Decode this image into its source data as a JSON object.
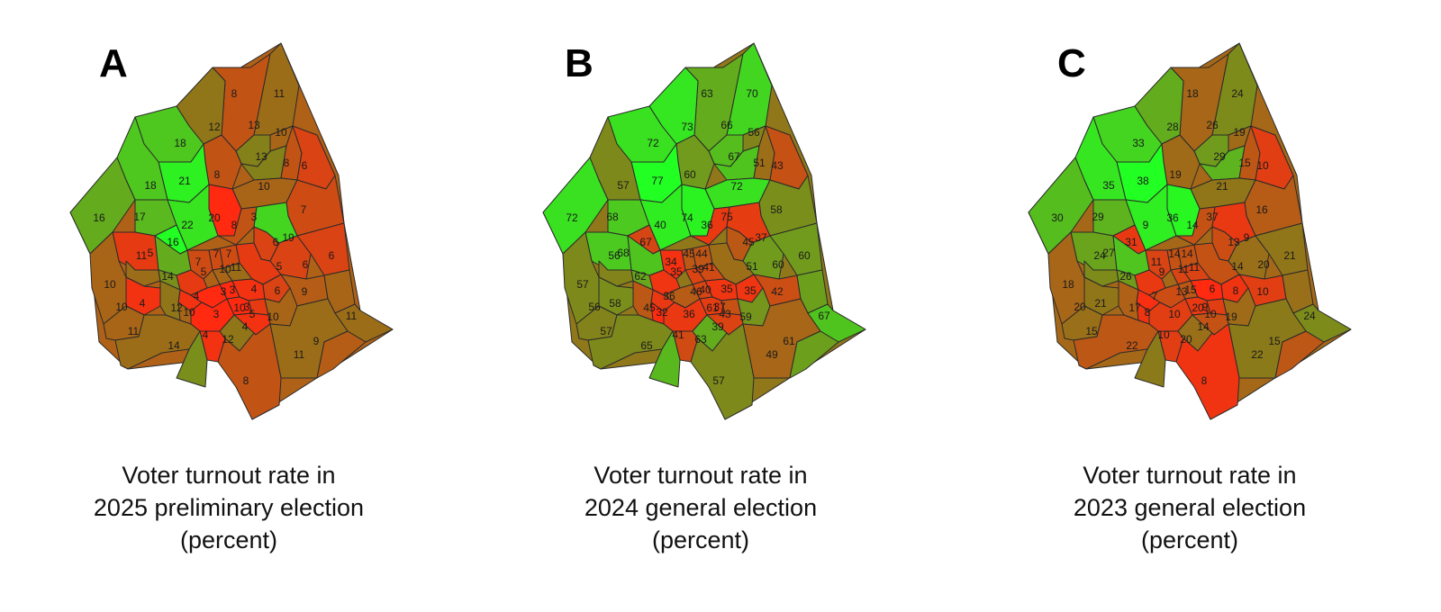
{
  "legend": {
    "low_color": "#ff2a10",
    "mid_color": "#8a7a1a",
    "high_color": "#22ff22"
  },
  "panels": [
    {
      "letter": "A",
      "caption": [
        "Voter turnout rate in",
        "2025 preliminary election",
        "(percent)"
      ],
      "labels": [
        {
          "t": "8",
          "v": 8
        },
        {
          "t": "11",
          "v": 11
        },
        {
          "t": "12",
          "v": 12
        },
        {
          "t": "13",
          "v": 13
        },
        {
          "t": "10",
          "v": 10
        },
        {
          "t": "18",
          "v": 18
        },
        {
          "t": "13",
          "v": 13
        },
        {
          "t": "8",
          "v": 8
        },
        {
          "t": "6",
          "v": 6
        },
        {
          "t": "8",
          "v": 8
        },
        {
          "t": "21",
          "v": 21
        },
        {
          "t": "10",
          "v": 10
        },
        {
          "t": "18",
          "v": 18
        },
        {
          "t": "7",
          "v": 7
        },
        {
          "t": "16",
          "v": 16
        },
        {
          "t": "17",
          "v": 17
        },
        {
          "t": "20",
          "v": 20
        },
        {
          "t": "3",
          "v": 3
        },
        {
          "t": "22",
          "v": 22
        },
        {
          "t": "8",
          "v": 8
        },
        {
          "t": "19",
          "v": 19
        },
        {
          "t": "6",
          "v": 6
        },
        {
          "t": "5",
          "v": 5
        },
        {
          "t": "16",
          "v": 16
        },
        {
          "t": "11",
          "v": 11
        },
        {
          "t": "7",
          "v": 7
        },
        {
          "t": "7",
          "v": 7
        },
        {
          "t": "7",
          "v": 7
        },
        {
          "t": "10",
          "v": 10
        },
        {
          "t": "11",
          "v": 11
        },
        {
          "t": "5",
          "v": 5
        },
        {
          "t": "6",
          "v": 6
        },
        {
          "t": "6",
          "v": 6
        },
        {
          "t": "14",
          "v": 14
        },
        {
          "t": "10",
          "v": 10
        },
        {
          "t": "5",
          "v": 5
        },
        {
          "t": "4",
          "v": 4
        },
        {
          "t": "3",
          "v": 3
        },
        {
          "t": "3",
          "v": 3
        },
        {
          "t": "4",
          "v": 4
        },
        {
          "t": "6",
          "v": 6
        },
        {
          "t": "9",
          "v": 9
        },
        {
          "t": "10",
          "v": 10
        },
        {
          "t": "4",
          "v": 4
        },
        {
          "t": "12",
          "v": 12
        },
        {
          "t": "10",
          "v": 10
        },
        {
          "t": "3",
          "v": 3
        },
        {
          "t": "3",
          "v": 3
        },
        {
          "t": "5",
          "v": 5
        },
        {
          "t": "10",
          "v": 10
        },
        {
          "t": "11",
          "v": 11
        },
        {
          "t": "10",
          "v": 10
        },
        {
          "t": "11",
          "v": 11
        },
        {
          "t": "4",
          "v": 4
        },
        {
          "t": "12",
          "v": 12
        },
        {
          "t": "4",
          "v": 4
        },
        {
          "t": "14",
          "v": 14
        },
        {
          "t": "11",
          "v": 11
        },
        {
          "t": "9",
          "v": 9
        },
        {
          "t": "8",
          "v": 8
        }
      ]
    },
    {
      "letter": "B",
      "caption": [
        "Voter turnout rate in",
        "2024 general election",
        "(percent)"
      ],
      "labels": [
        {
          "t": "63",
          "v": 63
        },
        {
          "t": "70",
          "v": 70
        },
        {
          "t": "73",
          "v": 73
        },
        {
          "t": "66",
          "v": 66
        },
        {
          "t": "56",
          "v": 56
        },
        {
          "t": "72",
          "v": 72
        },
        {
          "t": "67",
          "v": 67
        },
        {
          "t": "51",
          "v": 51
        },
        {
          "t": "43",
          "v": 43
        },
        {
          "t": "60",
          "v": 60
        },
        {
          "t": "77",
          "v": 77
        },
        {
          "t": "72",
          "v": 72
        },
        {
          "t": "57",
          "v": 57
        },
        {
          "t": "58",
          "v": 58
        },
        {
          "t": "72",
          "v": 72
        },
        {
          "t": "68",
          "v": 68
        },
        {
          "t": "74",
          "v": 74
        },
        {
          "t": "75",
          "v": 75
        },
        {
          "t": "40",
          "v": 40
        },
        {
          "t": "36",
          "v": 36
        },
        {
          "t": "37",
          "v": 37
        },
        {
          "t": "45",
          "v": 45
        },
        {
          "t": "68",
          "v": 68
        },
        {
          "t": "67",
          "v": 67
        },
        {
          "t": "56",
          "v": 56
        },
        {
          "t": "34",
          "v": 34
        },
        {
          "t": "45",
          "v": 45
        },
        {
          "t": "44",
          "v": 44
        },
        {
          "t": "39",
          "v": 39
        },
        {
          "t": "41",
          "v": 41
        },
        {
          "t": "51",
          "v": 51
        },
        {
          "t": "60",
          "v": 60
        },
        {
          "t": "60",
          "v": 60
        },
        {
          "t": "62",
          "v": 62
        },
        {
          "t": "57",
          "v": 57
        },
        {
          "t": "35",
          "v": 35
        },
        {
          "t": "36",
          "v": 36
        },
        {
          "t": "46",
          "v": 46
        },
        {
          "t": "40",
          "v": 40
        },
        {
          "t": "35",
          "v": 35
        },
        {
          "t": "35",
          "v": 35
        },
        {
          "t": "42",
          "v": 42
        },
        {
          "t": "61",
          "v": 61
        },
        {
          "t": "58",
          "v": 58
        },
        {
          "t": "45",
          "v": 45
        },
        {
          "t": "32",
          "v": 32
        },
        {
          "t": "36",
          "v": 36
        },
        {
          "t": "37",
          "v": 37
        },
        {
          "t": "43",
          "v": 43
        },
        {
          "t": "59",
          "v": 59
        },
        {
          "t": "67",
          "v": 67
        },
        {
          "t": "56",
          "v": 56
        },
        {
          "t": "57",
          "v": 57
        },
        {
          "t": "41",
          "v": 41
        },
        {
          "t": "63",
          "v": 63
        },
        {
          "t": "39",
          "v": 39
        },
        {
          "t": "65",
          "v": 65
        },
        {
          "t": "49",
          "v": 49
        },
        {
          "t": "61",
          "v": 61
        },
        {
          "t": "57",
          "v": 57
        }
      ]
    },
    {
      "letter": "C",
      "caption": [
        "Voter turnout rate in",
        "2023 general election",
        "(percent)"
      ],
      "labels": [
        {
          "t": "18",
          "v": 18
        },
        {
          "t": "24",
          "v": 24
        },
        {
          "t": "28",
          "v": 28
        },
        {
          "t": "26",
          "v": 26
        },
        {
          "t": "19",
          "v": 19
        },
        {
          "t": "33",
          "v": 33
        },
        {
          "t": "29",
          "v": 29
        },
        {
          "t": "15",
          "v": 15
        },
        {
          "t": "10",
          "v": 10
        },
        {
          "t": "19",
          "v": 19
        },
        {
          "t": "38",
          "v": 38
        },
        {
          "t": "21",
          "v": 21
        },
        {
          "t": "35",
          "v": 35
        },
        {
          "t": "16",
          "v": 16
        },
        {
          "t": "30",
          "v": 30
        },
        {
          "t": "29",
          "v": 29
        },
        {
          "t": "36",
          "v": 36
        },
        {
          "t": "37",
          "v": 37
        },
        {
          "t": "9",
          "v": 9
        },
        {
          "t": "14",
          "v": 14
        },
        {
          "t": "9",
          "v": 9
        },
        {
          "t": "13",
          "v": 13
        },
        {
          "t": "27",
          "v": 27
        },
        {
          "t": "31",
          "v": 31
        },
        {
          "t": "24",
          "v": 24
        },
        {
          "t": "11",
          "v": 11
        },
        {
          "t": "14",
          "v": 14
        },
        {
          "t": "14",
          "v": 14
        },
        {
          "t": "11",
          "v": 11
        },
        {
          "t": "11",
          "v": 11
        },
        {
          "t": "14",
          "v": 14
        },
        {
          "t": "20",
          "v": 20
        },
        {
          "t": "21",
          "v": 21
        },
        {
          "t": "26",
          "v": 26
        },
        {
          "t": "18",
          "v": 18
        },
        {
          "t": "9",
          "v": 9
        },
        {
          "t": "7",
          "v": 7
        },
        {
          "t": "13",
          "v": 13
        },
        {
          "t": "15",
          "v": 15
        },
        {
          "t": "6",
          "v": 6
        },
        {
          "t": "8",
          "v": 8
        },
        {
          "t": "10",
          "v": 10
        },
        {
          "t": "20",
          "v": 20
        },
        {
          "t": "21",
          "v": 21
        },
        {
          "t": "17",
          "v": 17
        },
        {
          "t": "8",
          "v": 8
        },
        {
          "t": "10",
          "v": 10
        },
        {
          "t": "9",
          "v": 9
        },
        {
          "t": "10",
          "v": 10
        },
        {
          "t": "19",
          "v": 19
        },
        {
          "t": "24",
          "v": 24
        },
        {
          "t": "20",
          "v": 20
        },
        {
          "t": "15",
          "v": 15
        },
        {
          "t": "10",
          "v": 10
        },
        {
          "t": "20",
          "v": 20
        },
        {
          "t": "14",
          "v": 14
        },
        {
          "t": "22",
          "v": 22
        },
        {
          "t": "22",
          "v": 22
        },
        {
          "t": "15",
          "v": 15
        },
        {
          "t": "8",
          "v": 8
        }
      ]
    }
  ]
}
